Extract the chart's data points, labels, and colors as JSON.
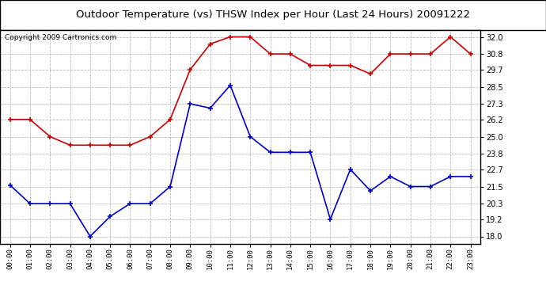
{
  "title": "Outdoor Temperature (vs) THSW Index per Hour (Last 24 Hours) 20091222",
  "copyright": "Copyright 2009 Cartronics.com",
  "x_labels": [
    "00:00",
    "01:00",
    "02:00",
    "03:00",
    "04:00",
    "05:00",
    "06:00",
    "07:00",
    "08:00",
    "09:00",
    "10:00",
    "11:00",
    "12:00",
    "13:00",
    "14:00",
    "15:00",
    "16:00",
    "17:00",
    "18:00",
    "19:00",
    "20:00",
    "21:00",
    "22:00",
    "23:00"
  ],
  "blue_data": [
    21.6,
    20.3,
    20.3,
    20.3,
    18.0,
    19.4,
    20.3,
    20.3,
    21.5,
    27.3,
    27.0,
    28.6,
    25.0,
    23.9,
    23.9,
    23.9,
    19.2,
    22.7,
    21.2,
    22.2,
    21.5,
    21.5,
    22.2,
    22.2
  ],
  "red_data": [
    26.2,
    26.2,
    25.0,
    24.4,
    24.4,
    24.4,
    24.4,
    25.0,
    26.2,
    29.7,
    31.5,
    32.0,
    32.0,
    30.8,
    30.8,
    30.0,
    30.0,
    30.0,
    29.4,
    30.8,
    30.8,
    30.8,
    32.0,
    30.8
  ],
  "y_ticks": [
    18.0,
    19.2,
    20.3,
    21.5,
    22.7,
    23.8,
    25.0,
    26.2,
    27.3,
    28.5,
    29.7,
    30.8,
    32.0
  ],
  "ylim": [
    17.5,
    32.5
  ],
  "blue_color": "#0000cc",
  "red_color": "#cc0000",
  "bg_color": "#ffffff",
  "grid_color": "#bbbbbb",
  "title_fontsize": 9.5,
  "copyright_fontsize": 6.5
}
